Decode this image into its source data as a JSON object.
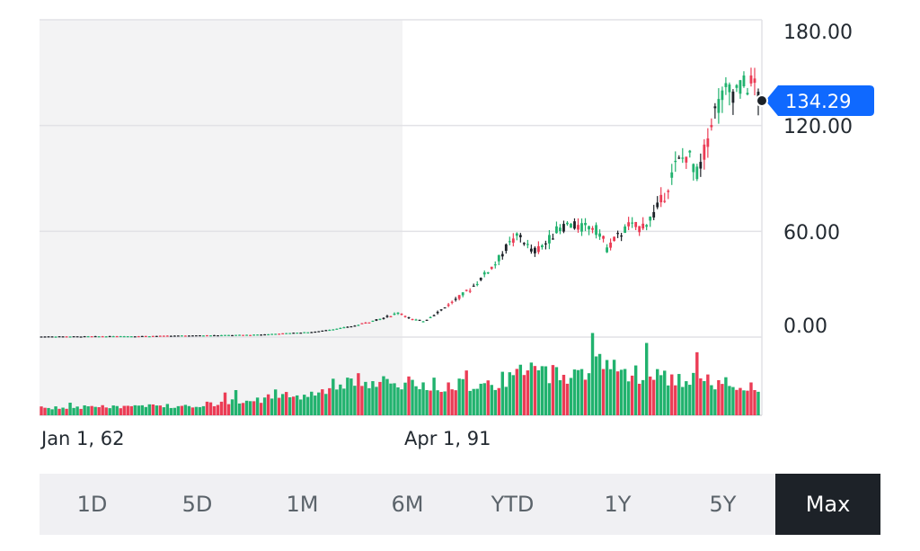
{
  "chart_data": {
    "type": "candlestick",
    "y_ticks": [
      "180.00",
      "120.00",
      "60.00",
      "0.00"
    ],
    "ylim": [
      0,
      180
    ],
    "x_ticks": [
      "Jan 1, 62",
      "Apr 1, 91"
    ],
    "current_price": "134.29",
    "current_price_value": 134.29,
    "price_path": [
      [
        1962,
        0.3
      ],
      [
        1970,
        0.5
      ],
      [
        1980,
        1.3
      ],
      [
        1985,
        3
      ],
      [
        1988,
        6
      ],
      [
        1990.5,
        10.5
      ],
      [
        1992,
        14
      ],
      [
        1993,
        10
      ],
      [
        1994,
        9
      ],
      [
        1996,
        18
      ],
      [
        1998,
        28
      ],
      [
        2000,
        42
      ],
      [
        2001,
        52
      ],
      [
        2002,
        58
      ],
      [
        2003,
        48
      ],
      [
        2004,
        52
      ],
      [
        2005,
        60
      ],
      [
        2006,
        64
      ],
      [
        2007,
        62
      ],
      [
        2008,
        63
      ],
      [
        2008.8,
        58
      ],
      [
        2009.2,
        50
      ],
      [
        2010,
        56
      ],
      [
        2011,
        63
      ],
      [
        2012,
        62
      ],
      [
        2013,
        68
      ],
      [
        2014,
        80
      ],
      [
        2015,
        98
      ],
      [
        2016,
        104
      ],
      [
        2016.8,
        92
      ],
      [
        2017.5,
        108
      ],
      [
        2018,
        125
      ],
      [
        2019,
        138
      ],
      [
        2020,
        140
      ],
      [
        2021,
        143
      ],
      [
        2021.5,
        144
      ],
      [
        2022,
        134.29
      ]
    ],
    "volume_profile": [
      [
        1962,
        0.1
      ],
      [
        1975,
        0.14
      ],
      [
        1985,
        0.3
      ],
      [
        1987,
        0.45
      ],
      [
        1988,
        0.5
      ],
      [
        1990,
        0.45
      ],
      [
        1995,
        0.42
      ],
      [
        2000,
        0.46
      ],
      [
        2003,
        0.62
      ],
      [
        2007,
        0.55
      ],
      [
        2008.5,
        0.8
      ],
      [
        2009.5,
        0.7
      ],
      [
        2011,
        0.6
      ],
      [
        2015,
        0.5
      ],
      [
        2022,
        0.42
      ]
    ],
    "colors": {
      "up": "#21b26e",
      "down": "#eb3c55",
      "neutral": "#1d2228",
      "accent": "#0f69ff",
      "grid": "#e2e2e6",
      "shade": "#f3f3f4"
    }
  },
  "range_selector": {
    "buttons": [
      "1D",
      "5D",
      "1M",
      "6M",
      "YTD",
      "1Y",
      "5Y",
      "Max"
    ],
    "active": "Max"
  }
}
